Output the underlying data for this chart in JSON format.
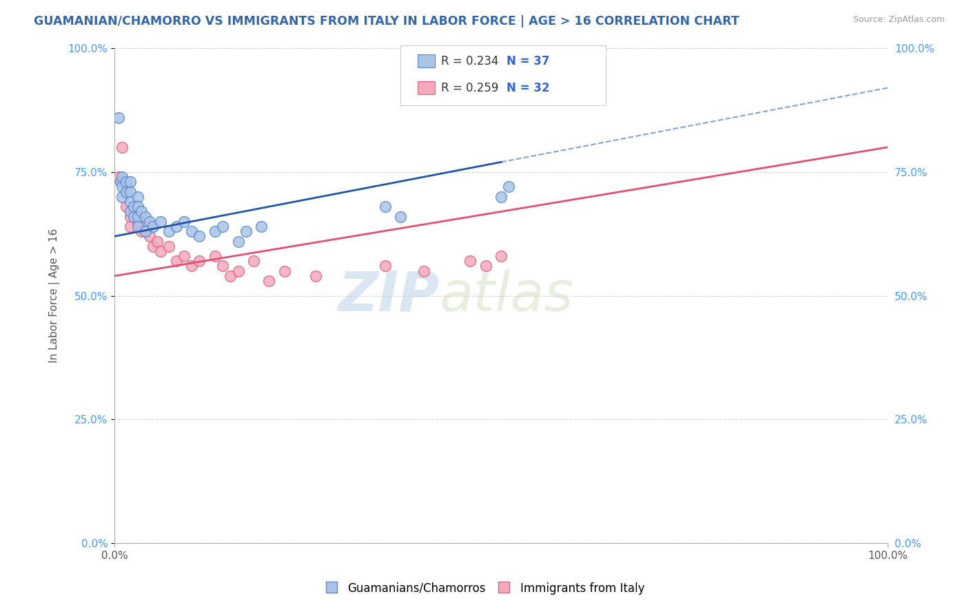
{
  "title": "GUAMANIAN/CHAMORRO VS IMMIGRANTS FROM ITALY IN LABOR FORCE | AGE > 16 CORRELATION CHART",
  "source_text": "Source: ZipAtlas.com",
  "ylabel": "In Labor Force | Age > 16",
  "r_blue": 0.234,
  "n_blue": 37,
  "r_pink": 0.259,
  "n_pink": 32,
  "y_ticklabels": [
    "0.0%",
    "25.0%",
    "50.0%",
    "75.0%",
    "100.0%"
  ],
  "y_tick_values": [
    0.0,
    0.25,
    0.5,
    0.75,
    1.0
  ],
  "legend_label_blue": "Guamanians/Chamorros",
  "legend_label_pink": "Immigrants from Italy",
  "blue_scatter_color": "#aac4e8",
  "blue_scatter_edge": "#5588cc",
  "pink_scatter_color": "#f4aabb",
  "pink_scatter_edge": "#e06080",
  "blue_line_color": "#2255aa",
  "pink_line_color": "#e05070",
  "watermark_zip": "ZIP",
  "watermark_atlas": "atlas",
  "background_color": "#ffffff",
  "grid_color": "#cccccc",
  "blue_line_y0": 0.62,
  "blue_line_y1": 0.92,
  "pink_line_y0": 0.54,
  "pink_line_y1": 0.8,
  "blue_x": [
    0.005,
    0.008,
    0.01,
    0.01,
    0.01,
    0.015,
    0.015,
    0.02,
    0.02,
    0.02,
    0.02,
    0.025,
    0.025,
    0.03,
    0.03,
    0.03,
    0.03,
    0.035,
    0.04,
    0.04,
    0.045,
    0.05,
    0.06,
    0.07,
    0.08,
    0.09,
    0.1,
    0.11,
    0.13,
    0.14,
    0.16,
    0.17,
    0.19,
    0.35,
    0.37,
    0.5,
    0.51
  ],
  "blue_y": [
    0.86,
    0.73,
    0.74,
    0.72,
    0.7,
    0.73,
    0.71,
    0.73,
    0.71,
    0.69,
    0.67,
    0.68,
    0.66,
    0.7,
    0.68,
    0.66,
    0.64,
    0.67,
    0.66,
    0.63,
    0.65,
    0.64,
    0.65,
    0.63,
    0.64,
    0.65,
    0.63,
    0.62,
    0.63,
    0.64,
    0.61,
    0.63,
    0.64,
    0.68,
    0.66,
    0.7,
    0.72
  ],
  "pink_x": [
    0.005,
    0.01,
    0.015,
    0.015,
    0.02,
    0.02,
    0.025,
    0.03,
    0.035,
    0.04,
    0.045,
    0.05,
    0.055,
    0.06,
    0.07,
    0.08,
    0.09,
    0.1,
    0.11,
    0.13,
    0.14,
    0.15,
    0.16,
    0.18,
    0.2,
    0.22,
    0.26,
    0.35,
    0.4,
    0.46,
    0.48,
    0.5
  ],
  "pink_y": [
    0.74,
    0.8,
    0.72,
    0.68,
    0.66,
    0.64,
    0.67,
    0.65,
    0.63,
    0.64,
    0.62,
    0.6,
    0.61,
    0.59,
    0.6,
    0.57,
    0.58,
    0.56,
    0.57,
    0.58,
    0.56,
    0.54,
    0.55,
    0.57,
    0.53,
    0.55,
    0.54,
    0.56,
    0.55,
    0.57,
    0.56,
    0.58
  ],
  "xlim": [
    0.0,
    1.0
  ],
  "ylim": [
    0.0,
    1.0
  ]
}
